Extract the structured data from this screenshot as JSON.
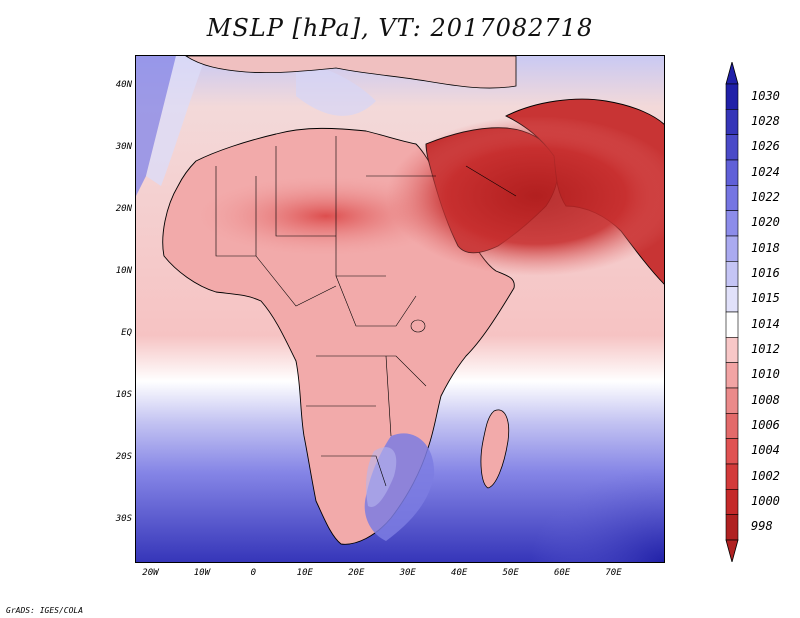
{
  "title": "MSLP [hPa], VT: 2017082718",
  "footer": "GrADS: IGES/COLA",
  "lat_labels": [
    {
      "text": "40N",
      "lat": 40
    },
    {
      "text": "30N",
      "lat": 30
    },
    {
      "text": "20N",
      "lat": 20
    },
    {
      "text": "10N",
      "lat": 10
    },
    {
      "text": "EQ",
      "lat": 0
    },
    {
      "text": "10S",
      "lat": -10
    },
    {
      "text": "20S",
      "lat": -20
    },
    {
      "text": "30S",
      "lat": -30
    }
  ],
  "lon_labels": [
    {
      "text": "20W",
      "lon": -20
    },
    {
      "text": "10W",
      "lon": -10
    },
    {
      "text": "0",
      "lon": 0
    },
    {
      "text": "10E",
      "lon": 10
    },
    {
      "text": "20E",
      "lon": 20
    },
    {
      "text": "30E",
      "lon": 30
    },
    {
      "text": "40E",
      "lon": 40
    },
    {
      "text": "50E",
      "lon": 50
    },
    {
      "text": "60E",
      "lon": 60
    },
    {
      "text": "70E",
      "lon": 70
    }
  ],
  "colorbar": {
    "levels": [
      "998",
      "1000",
      "1002",
      "1004",
      "1006",
      "1008",
      "1010",
      "1012",
      "1014",
      "1015",
      "1016",
      "1018",
      "1020",
      "1022",
      "1024",
      "1026",
      "1028",
      "1030"
    ],
    "colors": [
      "#b02121",
      "#c52a2a",
      "#d33a3a",
      "#e05252",
      "#e36a6a",
      "#eb8a8a",
      "#f2a4a4",
      "#f8c7c7",
      "#ffffff",
      "#e1e1fa",
      "#c5c5f5",
      "#aaaaf0",
      "#8c8cea",
      "#7575e2",
      "#6060d8",
      "#4a4ac8",
      "#3535b8",
      "#2020a8"
    ]
  },
  "map": {
    "lon_range": [
      -23,
      80
    ],
    "lat_range": [
      -37,
      45
    ],
    "sea_color": "#f4c7c7",
    "land_color": "#f1aaaa"
  }
}
